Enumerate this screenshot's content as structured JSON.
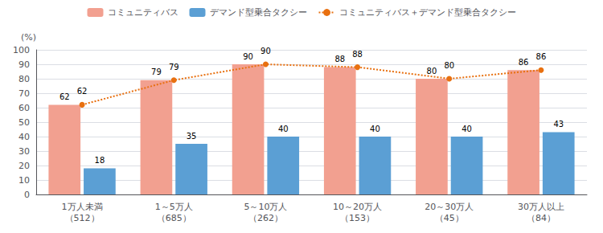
{
  "chart_data": {
    "type": "bar",
    "categories": [
      "1万人未満\n（512）",
      "1～5万人\n（685）",
      "5～10万人\n（262）",
      "10～20万人\n（153）",
      "20～30万人\n（45）",
      "30万人以上\n（84）"
    ],
    "series": [
      {
        "name": "コミュニティバス",
        "type": "bar",
        "color": "#F2A090",
        "values": [
          62,
          79,
          90,
          88,
          80,
          86
        ]
      },
      {
        "name": "デマンド型乗合タクシー",
        "type": "bar",
        "color": "#5B9FD4",
        "values": [
          18,
          35,
          40,
          40,
          40,
          43
        ]
      },
      {
        "name": "コミュニティバス＋デマンド型乗合タクシー",
        "type": "line",
        "color": "#E87010",
        "marker": "circle",
        "line_style": "dotted",
        "values": [
          62,
          79,
          90,
          88,
          80,
          86
        ]
      }
    ],
    "y_label": "(%)",
    "ylim": [
      0,
      100
    ],
    "yticks": [
      0,
      10,
      20,
      30,
      40,
      50,
      60,
      70,
      80,
      90,
      100
    ],
    "grid": true,
    "legend": "top",
    "data_labels": true
  }
}
